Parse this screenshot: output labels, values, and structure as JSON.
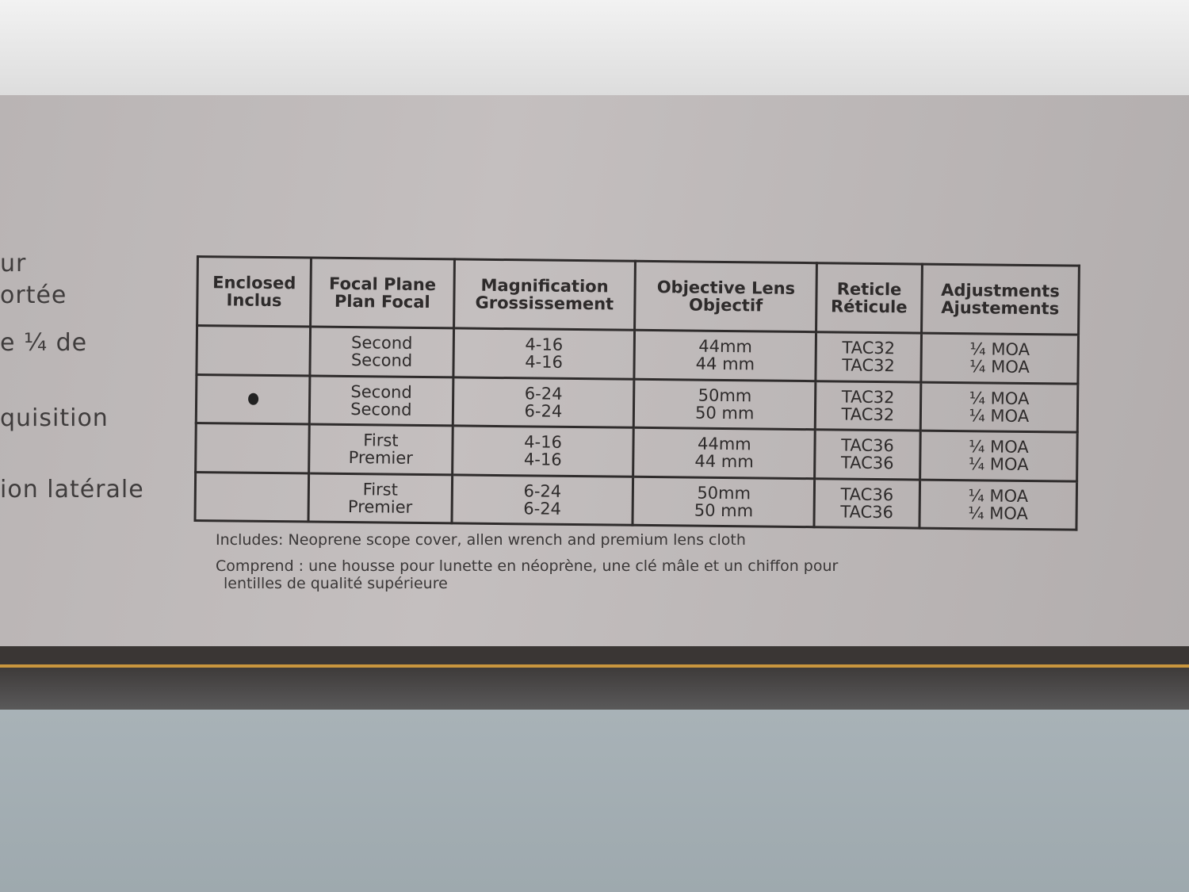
{
  "side_text": [
    "ur",
    "ortée",
    "e ¼ de",
    "quisition",
    "ion latérale"
  ],
  "table": {
    "headers": [
      [
        "Enclosed",
        "Inclus"
      ],
      [
        "Focal Plane",
        "Plan Focal"
      ],
      [
        "Magnification",
        "Grossissement"
      ],
      [
        "Objective Lens",
        "Objectif"
      ],
      [
        "Reticle",
        "Réticule"
      ],
      [
        "Adjustments",
        "Ajustements"
      ]
    ],
    "rows": [
      {
        "enclosed": false,
        "cells": [
          [
            "Second",
            "Second"
          ],
          [
            "4-16",
            "4-16"
          ],
          [
            "44mm",
            "44 mm"
          ],
          [
            "TAC32",
            "TAC32"
          ],
          [
            "¼ MOA",
            "¼ MOA"
          ]
        ]
      },
      {
        "enclosed": true,
        "cells": [
          [
            "Second",
            "Second"
          ],
          [
            "6-24",
            "6-24"
          ],
          [
            "50mm",
            "50 mm"
          ],
          [
            "TAC32",
            "TAC32"
          ],
          [
            "¼ MOA",
            "¼ MOA"
          ]
        ]
      },
      {
        "enclosed": false,
        "cells": [
          [
            "First",
            "Premier"
          ],
          [
            "4-16",
            "4-16"
          ],
          [
            "44mm",
            "44 mm"
          ],
          [
            "TAC36",
            "TAC36"
          ],
          [
            "¼ MOA",
            "¼ MOA"
          ]
        ]
      },
      {
        "enclosed": false,
        "cells": [
          [
            "First",
            "Premier"
          ],
          [
            "6-24",
            "6-24"
          ],
          [
            "50mm",
            "50 mm"
          ],
          [
            "TAC36",
            "TAC36"
          ],
          [
            "¼ MOA",
            "¼ MOA"
          ]
        ]
      }
    ]
  },
  "includes_en": "Includes: Neoprene scope cover, allen wrench and premium lens cloth",
  "includes_fr_1": "Comprend : une housse pour lunette en néoprène, une clé mâle et un chiffon pour",
  "includes_fr_2": "lentilles de qualité supérieure",
  "colors": {
    "panel": "#bdb8b8",
    "band": "#3a3634",
    "accent": "#c9963e",
    "floor": "#a8b2b7"
  }
}
